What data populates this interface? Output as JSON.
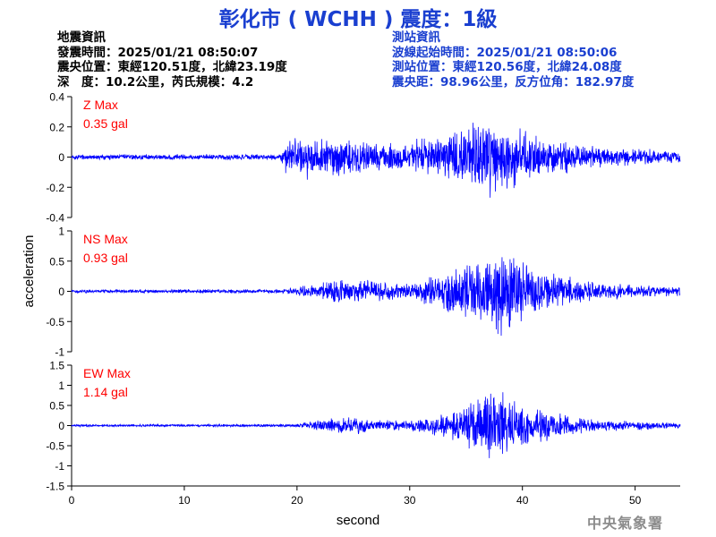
{
  "title": "彰化市 ( WCHH ) 震度：1級",
  "quake_info": {
    "heading": "地震資訊",
    "origin_time": "發震時間：2025/01/21 08:50:07",
    "epicenter": "震央位置：東經120.51度，北緯23.19度",
    "depth_magnitude": "深　度：10.2公里，芮氏規模：4.2"
  },
  "station_info": {
    "heading": "測站資訊",
    "wave_start": "波線起始時間：2025/01/21 08:50:06",
    "location": "測站位置：東經120.56度，北緯24.08度",
    "distance_azimuth": "震央距：98.96公里，反方位角：182.97度"
  },
  "footer": {
    "organization": "中央氣象署"
  },
  "colors": {
    "title": "#1a3fd0",
    "station_info": "#1a3fd0",
    "trace": "#0000ff",
    "max_label": "#ff0000",
    "footer": "#8c8c8c"
  },
  "chart_data": {
    "type": "line",
    "xlabel": "second",
    "ylabel": "acceleration",
    "xlim": [
      0,
      54
    ],
    "xticks": [
      0,
      10,
      20,
      30,
      40,
      50
    ],
    "grid": false,
    "panels": [
      {
        "component": "Z",
        "max_label": "Z Max",
        "max_value": "0.35 gal",
        "ylim": [
          -0.4,
          0.4
        ],
        "yticks": [
          -0.4,
          -0.2,
          0,
          0.2,
          0.4
        ],
        "ytick_labels": [
          "-0.4",
          "-0.2",
          "0",
          "0.2",
          "0.4"
        ],
        "series": [
          {
            "x_start": 0,
            "x_end": 54,
            "envelope": [
              [
                0,
                0.02
              ],
              [
                18.5,
                0.02
              ],
              [
                19,
                0.12
              ],
              [
                21,
                0.16
              ],
              [
                24,
                0.14
              ],
              [
                27,
                0.1
              ],
              [
                30,
                0.12
              ],
              [
                33,
                0.16
              ],
              [
                35,
                0.22
              ],
              [
                37,
                0.32
              ],
              [
                38.5,
                0.25
              ],
              [
                40,
                0.2
              ],
              [
                43,
                0.12
              ],
              [
                47,
                0.07
              ],
              [
                54,
                0.05
              ]
            ]
          }
        ]
      },
      {
        "component": "NS",
        "max_label": "NS Max",
        "max_value": "0.93 gal",
        "ylim": [
          -1,
          1
        ],
        "yticks": [
          -1,
          -0.5,
          0,
          0.5,
          1
        ],
        "ytick_labels": [
          "-1",
          "-0.5",
          "0",
          "0.5",
          "1"
        ],
        "series": [
          {
            "x_start": 0,
            "x_end": 54,
            "envelope": [
              [
                0,
                0.03
              ],
              [
                19,
                0.04
              ],
              [
                21,
                0.12
              ],
              [
                24,
                0.22
              ],
              [
                27,
                0.2
              ],
              [
                30,
                0.15
              ],
              [
                33,
                0.35
              ],
              [
                35,
                0.5
              ],
              [
                37,
                0.75
              ],
              [
                38.5,
                0.85
              ],
              [
                40,
                0.5
              ],
              [
                43,
                0.3
              ],
              [
                47,
                0.15
              ],
              [
                54,
                0.08
              ]
            ]
          }
        ]
      },
      {
        "component": "EW",
        "max_label": "EW Max",
        "max_value": "1.14 gal",
        "ylim": [
          -1.5,
          1.5
        ],
        "yticks": [
          -1.5,
          -1,
          -0.5,
          0,
          0.5,
          1,
          1.5
        ],
        "ytick_labels": [
          "-1.5",
          "-1",
          "-0.5",
          "0",
          "0.5",
          "1",
          "1.5"
        ],
        "series": [
          {
            "x_start": 0,
            "x_end": 54,
            "envelope": [
              [
                0,
                0.03
              ],
              [
                20,
                0.04
              ],
              [
                21,
                0.1
              ],
              [
                23,
                0.2
              ],
              [
                25,
                0.25
              ],
              [
                27,
                0.15
              ],
              [
                30,
                0.15
              ],
              [
                33,
                0.3
              ],
              [
                35,
                0.55
              ],
              [
                37,
                0.95
              ],
              [
                38.5,
                0.9
              ],
              [
                40,
                0.55
              ],
              [
                43,
                0.35
              ],
              [
                47,
                0.15
              ],
              [
                54,
                0.08
              ]
            ]
          }
        ]
      }
    ]
  }
}
